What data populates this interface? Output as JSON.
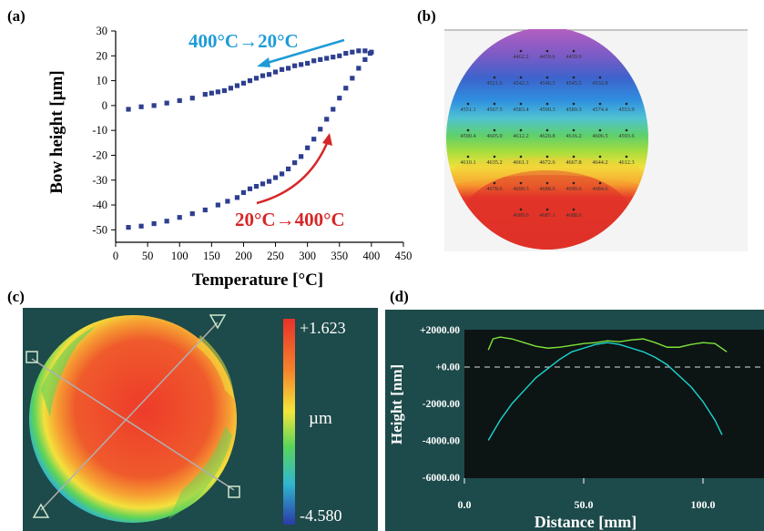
{
  "labels": {
    "a": "(a)",
    "b": "(b)",
    "c": "(c)",
    "d": "(d)"
  },
  "colors": {
    "scatter": "#2e3f8f",
    "cooling": "#1e9bd7",
    "heating": "#d62728",
    "map_bg": "#1d4a4a",
    "profile_bg": "#0d1414",
    "profile_x": "#19d7d0",
    "profile_y": "#7de33a"
  },
  "chart_data": [
    {
      "type": "scatter",
      "xlabel": "Temperature [°C]",
      "ylabel": "Bow height [µm]",
      "xlim": [
        0,
        450
      ],
      "ylim": [
        -55,
        30
      ],
      "xticks": [
        "0",
        "50",
        "100",
        "150",
        "200",
        "250",
        "300",
        "350",
        "400",
        "450"
      ],
      "yticks": [
        "-50",
        "-40",
        "-30",
        "-20",
        "-10",
        "0",
        "10",
        "20",
        "30"
      ],
      "annotations": [
        {
          "text": "400°C→20°C",
          "color": "#1e9bd7"
        },
        {
          "text": "20°C→400°C",
          "color": "#d62728"
        }
      ],
      "series": [
        {
          "x": [
            20,
            40,
            60,
            80,
            100,
            120,
            140,
            160,
            175,
            190,
            200,
            210,
            220,
            230,
            240,
            250,
            260,
            270,
            280,
            290,
            300,
            310,
            320,
            330,
            340,
            350,
            360,
            370,
            380,
            390,
            400,
            398,
            390,
            380,
            370,
            360,
            350,
            340,
            330,
            320,
            310,
            300,
            290,
            280,
            270,
            260,
            250,
            240,
            230,
            220,
            210,
            200,
            190,
            180,
            170,
            160,
            150,
            140,
            120,
            100,
            80,
            60,
            40,
            20
          ],
          "y": [
            -49,
            -48.5,
            -47.5,
            -46.5,
            -45,
            -43.5,
            -42,
            -40,
            -38.5,
            -37,
            -35,
            -33.5,
            -32.5,
            -31.5,
            -30.5,
            -29,
            -27.5,
            -25.5,
            -23,
            -20.5,
            -17,
            -13.5,
            -9.5,
            -5.5,
            -1.5,
            3,
            7,
            11,
            15,
            18.5,
            21.5,
            21,
            22,
            22,
            21.5,
            21,
            20,
            19.5,
            19,
            18.5,
            18,
            17,
            16.5,
            16,
            15,
            14.5,
            13.5,
            12.5,
            12,
            11,
            10,
            9,
            8,
            7,
            6,
            5.5,
            5,
            4.5,
            3,
            2,
            1,
            0,
            -0.5,
            -1.5
          ]
        }
      ]
    },
    {
      "type": "heatmap",
      "rows": [
        [
          "4462.2",
          "4459.6",
          "4459.9"
        ],
        [
          "4521.6",
          "4542.3",
          "4546.5",
          "4545.5",
          "4532.8"
        ],
        [
          "4551.1",
          "4567.5",
          "4583.4",
          "4590.3",
          "4589.3",
          "4574.4",
          "4553.9"
        ],
        [
          "4590.4",
          "4605.0",
          "4612.2",
          "4620.8",
          "4616.2",
          "4606.5",
          "4593.6"
        ],
        [
          "4610.1",
          "4635.2",
          "4661.1",
          "4672.6",
          "4667.8",
          "4644.2",
          "4612.3"
        ],
        [
          "4678.6",
          "4690.3",
          "4688.6",
          "4690.6",
          "4684.6"
        ],
        [
          "4689.0",
          "4687.1",
          "4688.6"
        ]
      ]
    },
    {
      "type": "heatmap",
      "colorbar": {
        "max": "+1.623",
        "min": "-4.580",
        "unit": "µm"
      }
    },
    {
      "type": "line",
      "xlabel": "Distance [mm]",
      "ylabel": "Height [nm]",
      "xlim": [
        0,
        120
      ],
      "ylim": [
        -6000,
        2000
      ],
      "xticks": [
        "0.0",
        "50.0",
        "100.0"
      ],
      "yticks": [
        "+2000.00",
        "+0.00",
        "-2000.00",
        "-4000.00",
        "-6000.00"
      ],
      "series": [
        {
          "x": [
            10,
            15,
            20,
            25,
            30,
            35,
            40,
            45,
            50,
            55,
            60,
            65,
            70,
            75,
            80,
            85,
            90,
            95,
            100,
            105,
            108
          ],
          "y": [
            -4000,
            -2900,
            -2000,
            -1300,
            -600,
            -100,
            400,
            800,
            1000,
            1200,
            1300,
            1200,
            1000,
            800,
            500,
            100,
            -500,
            -1100,
            -1900,
            -2900,
            -3700
          ]
        },
        {
          "x": [
            10,
            12,
            15,
            20,
            25,
            30,
            35,
            40,
            45,
            50,
            55,
            60,
            65,
            70,
            75,
            80,
            85,
            90,
            95,
            100,
            105,
            110
          ],
          "y": [
            900,
            1500,
            1600,
            1500,
            1300,
            1100,
            1000,
            1050,
            1150,
            1250,
            1300,
            1400,
            1350,
            1450,
            1500,
            1300,
            1050,
            1050,
            1200,
            1300,
            1250,
            800
          ]
        }
      ]
    }
  ]
}
